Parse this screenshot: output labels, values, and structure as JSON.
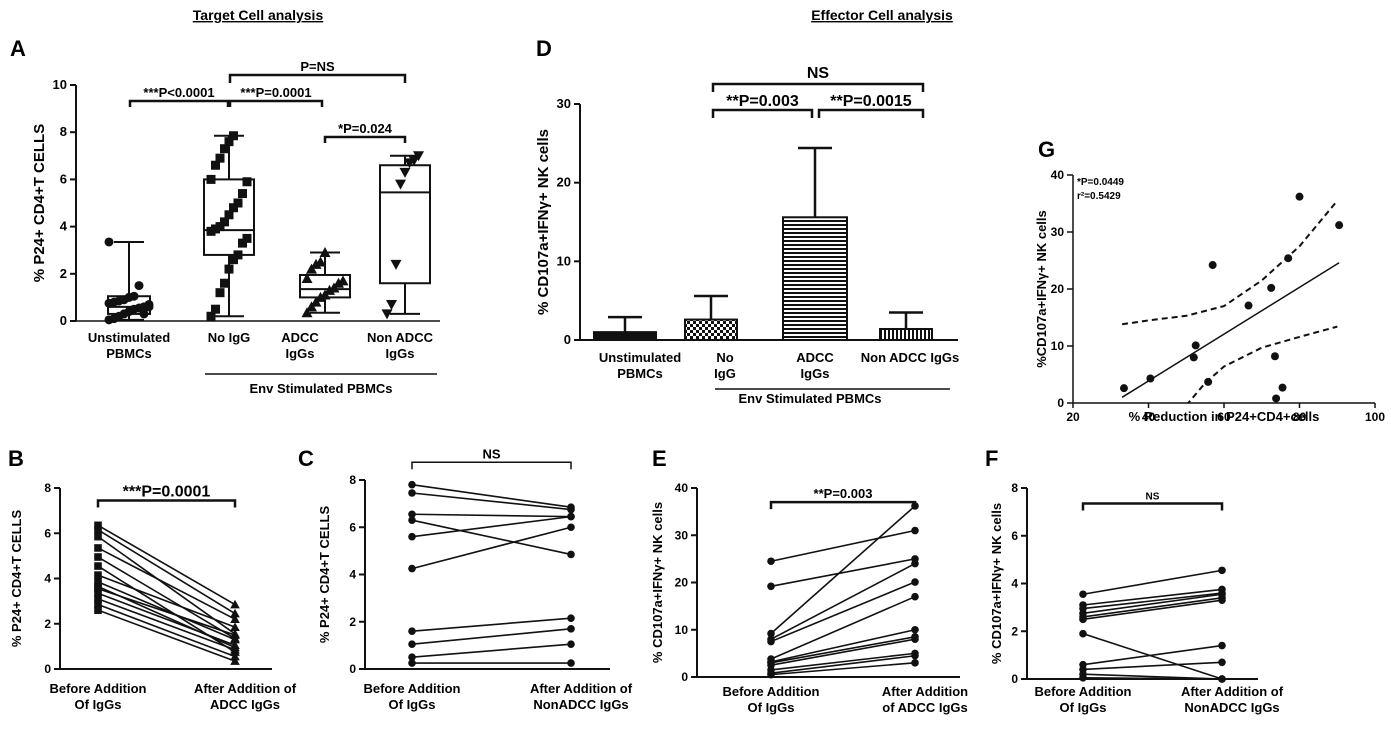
{
  "section_titles": {
    "target": "Target Cell analysis",
    "effector": "Effector Cell analysis"
  },
  "chart_data": [
    {
      "id": "A",
      "type": "box",
      "panel_label": "A",
      "ylabel": "% P24+ CD4+T CELLS",
      "ylim": [
        0,
        10
      ],
      "yticks": [
        0,
        2,
        4,
        6,
        8,
        10
      ],
      "categories": [
        "Unstimulated PBMCs",
        "No IgG",
        "ADCC IgGs",
        "Non ADCC IgGs"
      ],
      "group_label": "Env Stimulated PBMCs",
      "boxes": [
        {
          "name": "Unstimulated PBMCs",
          "min": 0.05,
          "q1": 0.3,
          "median": 0.6,
          "q3": 1.05,
          "max": 3.35
        },
        {
          "name": "No IgG",
          "min": 0.2,
          "q1": 2.8,
          "median": 3.85,
          "q3": 6.0,
          "max": 7.85
        },
        {
          "name": "ADCC IgGs",
          "min": 0.35,
          "q1": 1.0,
          "median": 1.35,
          "q3": 1.95,
          "max": 2.9
        },
        {
          "name": "Non ADCC IgGs",
          "min": 0.3,
          "q1": 1.6,
          "median": 5.45,
          "q3": 6.6,
          "max": 7.0
        }
      ],
      "points": [
        [
          0.05,
          0.1,
          0.2,
          0.3,
          0.4,
          0.5,
          0.55,
          0.6,
          0.7,
          0.75,
          0.8,
          0.85,
          0.9,
          1.0,
          1.05,
          1.5,
          0.3,
          0.6,
          3.35
        ],
        [
          0.2,
          0.5,
          1.2,
          1.6,
          2.2,
          2.6,
          2.8,
          3.3,
          3.5,
          3.8,
          3.9,
          4.0,
          4.2,
          4.5,
          4.8,
          5.0,
          5.4,
          5.9,
          6.0,
          6.6,
          6.9,
          7.3,
          7.6,
          7.85
        ],
        [
          0.35,
          0.6,
          0.8,
          1.0,
          1.1,
          1.3,
          1.4,
          1.6,
          1.7,
          1.8,
          2.2,
          2.4,
          2.5,
          2.9
        ],
        [
          0.3,
          0.7,
          2.4,
          5.8,
          6.3,
          6.7,
          6.8,
          7.0
        ]
      ],
      "annotations": [
        {
          "text": "***P<0.0001",
          "from": 0,
          "to": 1,
          "y": 9.3
        },
        {
          "text": "***P=0.0001",
          "from": 1,
          "to": 2,
          "y": 9.3
        },
        {
          "text": "P=NS",
          "from": 1,
          "to": 3,
          "y": 10.3
        },
        {
          "text": "*P=0.024",
          "from": 2,
          "to": 3,
          "y": 7.8
        }
      ]
    },
    {
      "id": "D",
      "type": "bar",
      "panel_label": "D",
      "ylabel": "% CD107a+IFNγ+ NK cells",
      "ylim": [
        0,
        30
      ],
      "yticks": [
        0,
        10,
        20,
        30
      ],
      "categories": [
        "Unstimulated PBMCs",
        "No IgG",
        "ADCC IgGs",
        "Non ADCC IgGs"
      ],
      "group_label": "Env Stimulated PBMCs",
      "values": [
        1.0,
        2.6,
        15.6,
        1.4
      ],
      "errors": [
        1.9,
        3.0,
        8.8,
        2.1
      ],
      "annotations": [
        {
          "text": "NS",
          "from": 1,
          "to": 3,
          "y": 33.2
        },
        {
          "text": "**P=0.003",
          "from": 1,
          "to": 2,
          "y": 29.0
        },
        {
          "text": "**P=0.0015",
          "from": 2,
          "to": 3,
          "y": 29.0
        }
      ]
    },
    {
      "id": "G",
      "type": "scatter",
      "panel_label": "G",
      "xlabel": "% Reduction in P24+CD4+cells",
      "ylabel": "%CD107a+IFNγ+ NK cells",
      "xlim": [
        20,
        100
      ],
      "ylim": [
        0,
        40
      ],
      "xticks": [
        20,
        40,
        60,
        80,
        100
      ],
      "yticks": [
        0,
        10,
        20,
        30,
        40
      ],
      "stat_p": "*P=0.0449",
      "stat_r2": "r²=0.5429",
      "x": [
        33.5,
        40.5,
        52,
        52.5,
        55.8,
        57,
        66.5,
        72.5,
        73.5,
        73.8,
        75.5,
        77,
        80,
        90.5
      ],
      "y": [
        2.6,
        4.3,
        8.0,
        10.1,
        3.7,
        24.2,
        17.1,
        20.2,
        8.2,
        0.8,
        2.7,
        25.4,
        36.2,
        31.2
      ],
      "fit": {
        "x1": 33,
        "y1": 1.0,
        "x2": 90.5,
        "y2": 24.6
      },
      "ci_upper": [
        [
          33,
          13.8
        ],
        [
          40,
          14.5
        ],
        [
          50,
          15.3
        ],
        [
          60,
          17.0
        ],
        [
          70,
          21.5
        ],
        [
          80,
          27.5
        ],
        [
          90,
          35.5
        ]
      ],
      "ci_lower": [
        [
          50,
          -0.4
        ],
        [
          55,
          3.5
        ],
        [
          60,
          6.4
        ],
        [
          70,
          9.7
        ],
        [
          80,
          11.6
        ],
        [
          90,
          13.4
        ]
      ]
    },
    {
      "id": "B",
      "type": "paired-line",
      "panel_label": "B",
      "ylabel": "% P24+ CD4+T CELLS",
      "ylim": [
        0,
        8
      ],
      "yticks": [
        0,
        2,
        4,
        6,
        8
      ],
      "categories": [
        "Before Addition Of IgGs",
        "After Addition of ADCC IgGs"
      ],
      "pairs": [
        [
          6.35,
          2.85
        ],
        [
          6.15,
          2.45
        ],
        [
          5.85,
          1.55
        ],
        [
          5.35,
          2.2
        ],
        [
          4.95,
          1.35
        ],
        [
          4.55,
          0.75
        ],
        [
          4.15,
          1.85
        ],
        [
          3.85,
          1.3
        ],
        [
          3.55,
          1.5
        ],
        [
          3.35,
          1.05
        ],
        [
          3.1,
          0.85
        ],
        [
          2.85,
          0.55
        ],
        [
          2.6,
          0.35
        ],
        [
          3.65,
          0.95
        ]
      ],
      "annotations": [
        {
          "text": "***P=0.0001",
          "y": 7.45
        }
      ]
    },
    {
      "id": "C",
      "type": "paired-line",
      "panel_label": "C",
      "ylabel": "% P24+ CD4+T CELLS",
      "ylim": [
        0,
        8
      ],
      "yticks": [
        0,
        2,
        4,
        6,
        8
      ],
      "categories": [
        "Before Addition Of IgGs",
        "After Addition of NonADCC IgGs"
      ],
      "pairs": [
        [
          7.8,
          6.85
        ],
        [
          7.45,
          6.75
        ],
        [
          6.55,
          6.45
        ],
        [
          6.3,
          4.85
        ],
        [
          5.6,
          6.45
        ],
        [
          4.25,
          6.0
        ],
        [
          1.6,
          2.15
        ],
        [
          1.05,
          1.7
        ],
        [
          0.5,
          1.05
        ],
        [
          0.25,
          0.25
        ]
      ],
      "annotations": [
        {
          "text": "NS",
          "y": 8.75
        }
      ]
    },
    {
      "id": "E",
      "type": "paired-line",
      "panel_label": "E",
      "ylabel": "% CD107a+IFNγ+ NK cells",
      "ylim": [
        0,
        40
      ],
      "yticks": [
        0,
        10,
        20,
        30,
        40
      ],
      "categories": [
        "Before Addition Of IgGs",
        "After Addition of ADCC IgGs"
      ],
      "pairs": [
        [
          24.5,
          31.0
        ],
        [
          19.2,
          25.0
        ],
        [
          9.2,
          36.2
        ],
        [
          8.0,
          24.0
        ],
        [
          7.5,
          20.1
        ],
        [
          3.8,
          17.0
        ],
        [
          3.2,
          10.0
        ],
        [
          3.0,
          8.5
        ],
        [
          2.5,
          8.0
        ],
        [
          1.5,
          5.0
        ],
        [
          0.8,
          4.5
        ],
        [
          0.5,
          3.0
        ]
      ],
      "annotations": [
        {
          "text": "**P=0.003",
          "y": 37.0
        }
      ]
    },
    {
      "id": "F",
      "type": "paired-line",
      "panel_label": "F",
      "ylabel": "% CD107a+IFNγ+ NK cells",
      "ylim": [
        0,
        8
      ],
      "yticks": [
        0,
        2,
        4,
        6,
        8
      ],
      "categories": [
        "Before Addition Of IgGs",
        "After Addition of NonADCC IgGs"
      ],
      "pairs": [
        [
          3.55,
          4.55
        ],
        [
          3.1,
          3.75
        ],
        [
          2.95,
          3.6
        ],
        [
          2.75,
          3.55
        ],
        [
          2.6,
          3.4
        ],
        [
          2.5,
          3.3
        ],
        [
          1.9,
          0.0
        ],
        [
          0.6,
          1.4
        ],
        [
          0.4,
          0.7
        ],
        [
          0.2,
          0.0
        ],
        [
          0.05,
          0.0
        ]
      ],
      "annotations": [
        {
          "text": "NS",
          "y": 7.35
        }
      ]
    }
  ]
}
